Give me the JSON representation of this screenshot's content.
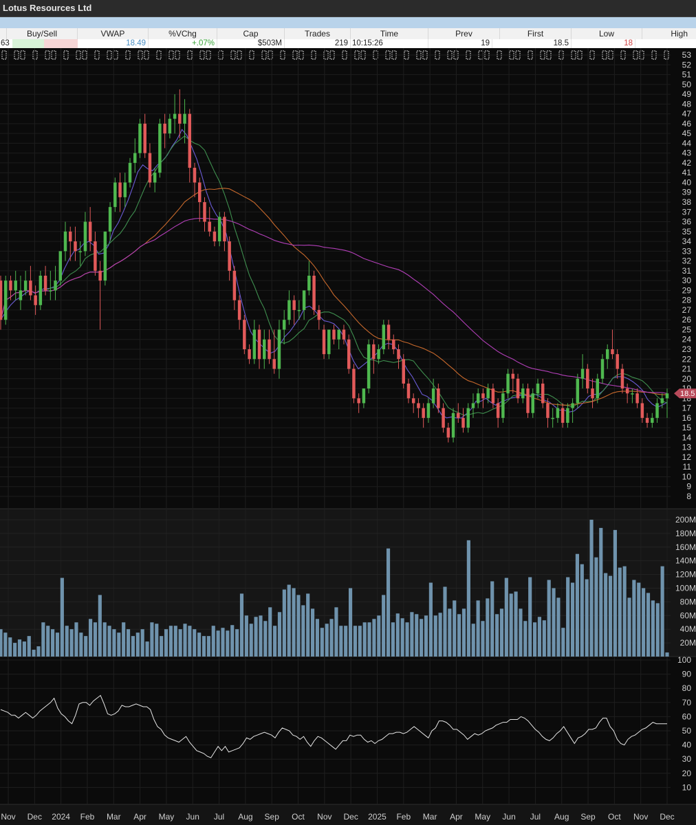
{
  "window": {
    "title": "Lotus Resources Ltd"
  },
  "quote": {
    "headers": [
      "Buy/Sell",
      "VWAP",
      "%VChg",
      "Cap",
      "Trades",
      "Time",
      "Prev",
      "First",
      "Low",
      "High"
    ],
    "values": {
      "left_fragment": "63",
      "vwap": "18.49",
      "vchg": "+.07%",
      "cap": "$503M",
      "trades": "219",
      "time": "10:15:26",
      "prev": "19",
      "first": "18.5",
      "low": "18"
    },
    "colors": {
      "buy_fill": "#d8f3d8",
      "sell_fill": "#f6d6d6",
      "up_text": "#3aa53a",
      "down_text": "#d04545",
      "vwap_text": "#4a8fc4"
    }
  },
  "chart_data": {
    "type": "candlestick",
    "panels": [
      "price",
      "volume",
      "rsi"
    ],
    "x_month_labels": [
      "Nov",
      "Dec",
      "2024",
      "Feb",
      "Mar",
      "Apr",
      "May",
      "Jun",
      "Jul",
      "Aug",
      "Sep",
      "Oct",
      "Nov",
      "Dec",
      "2025",
      "Feb",
      "Mar",
      "Apr",
      "May",
      "Jun",
      "Jul",
      "Aug",
      "Sep",
      "Oct",
      "Nov",
      "Dec"
    ],
    "price": {
      "ylim": [
        8,
        53
      ],
      "ticks": [
        53,
        52,
        51,
        50,
        49,
        48,
        47,
        46,
        45,
        44,
        43,
        42,
        41,
        40,
        39,
        38,
        37,
        36,
        35,
        34,
        33,
        32,
        31,
        30,
        29,
        28,
        27,
        26,
        25,
        24,
        23,
        22,
        21,
        20,
        19,
        18,
        17,
        16,
        15,
        14,
        13,
        12,
        11,
        10,
        9,
        8
      ],
      "last_price_label": "18.5",
      "ohlc": [
        [
          30,
          30.5,
          25,
          26
        ],
        [
          26,
          30.5,
          25.5,
          30
        ],
        [
          30,
          30.5,
          28,
          29
        ],
        [
          29,
          31,
          28,
          30
        ],
        [
          28,
          30.5,
          27,
          29
        ],
        [
          29,
          31,
          28.5,
          30
        ],
        [
          30,
          31.5,
          28,
          28.5
        ],
        [
          28.5,
          29.5,
          26.5,
          27.5
        ],
        [
          27.5,
          31,
          27,
          30.5
        ],
        [
          30.5,
          31.5,
          28.5,
          29
        ],
        [
          29,
          31,
          28,
          29
        ],
        [
          29,
          31.5,
          28,
          30
        ],
        [
          30,
          33,
          29.5,
          33
        ],
        [
          33,
          36,
          32,
          35
        ],
        [
          35,
          35.5,
          32,
          34
        ],
        [
          34,
          35.5,
          32,
          33
        ],
        [
          33,
          34,
          31.5,
          33
        ],
        [
          33,
          37,
          32.5,
          36
        ],
        [
          36,
          37.5,
          33,
          34
        ],
        [
          34,
          35,
          30.5,
          31
        ],
        [
          31,
          32,
          25,
          30
        ],
        [
          30,
          35,
          29.5,
          35
        ],
        [
          35,
          38,
          34,
          37.5
        ],
        [
          37.5,
          40.5,
          37,
          40
        ],
        [
          40,
          41,
          37,
          38.5
        ],
        [
          38.5,
          41,
          37.5,
          40
        ],
        [
          40,
          42.5,
          39.5,
          42
        ],
        [
          42,
          44.5,
          41,
          43
        ],
        [
          43,
          46.5,
          42.5,
          46
        ],
        [
          46,
          47,
          42.5,
          43
        ],
        [
          43,
          44,
          39.5,
          40
        ],
        [
          40,
          41.5,
          39,
          41
        ],
        [
          41,
          46.5,
          40.5,
          46
        ],
        [
          46,
          47,
          43.5,
          45
        ],
        [
          45,
          47,
          44.5,
          46.5
        ],
        [
          46.5,
          49,
          45,
          47
        ],
        [
          47,
          49.5,
          44.5,
          46
        ],
        [
          46,
          48.5,
          44,
          47
        ],
        [
          47,
          47.5,
          40,
          41.5
        ],
        [
          41.5,
          42,
          38.5,
          40
        ],
        [
          40,
          40.5,
          36,
          38
        ],
        [
          38,
          38.5,
          35,
          36
        ],
        [
          36,
          37.5,
          34.5,
          35
        ],
        [
          35,
          35.5,
          33.5,
          34
        ],
        [
          34,
          37,
          33.5,
          36.5
        ],
        [
          36.5,
          37,
          33,
          34
        ],
        [
          34,
          34.5,
          30,
          31
        ],
        [
          31,
          31.5,
          27,
          28
        ],
        [
          28,
          28.5,
          25,
          26
        ],
        [
          26,
          26.5,
          22.5,
          23
        ],
        [
          23,
          23.5,
          21.5,
          22
        ],
        [
          22,
          26,
          21.5,
          25
        ],
        [
          25,
          25.5,
          21,
          22
        ],
        [
          22,
          25,
          21,
          24
        ],
        [
          24,
          25,
          21.5,
          22
        ],
        [
          22,
          25,
          20.5,
          21
        ],
        [
          21,
          26,
          20,
          25
        ],
        [
          25,
          27,
          23.5,
          26
        ],
        [
          26,
          29,
          25.5,
          28
        ],
        [
          28,
          28.5,
          25.5,
          27
        ],
        [
          27,
          28,
          26,
          27
        ],
        [
          27,
          29,
          26,
          29
        ],
        [
          29,
          32,
          28.5,
          30.5
        ],
        [
          30.5,
          31,
          26.5,
          27
        ],
        [
          27,
          27.5,
          25,
          26
        ],
        [
          25,
          25.5,
          22,
          22.5
        ],
        [
          22.5,
          25,
          22,
          25
        ],
        [
          25,
          25.5,
          23.5,
          24
        ],
        [
          24,
          25,
          23,
          25
        ],
        [
          25,
          25.5,
          23.5,
          24
        ],
        [
          24,
          24.5,
          20.5,
          21
        ],
        [
          21,
          21.5,
          17.5,
          18
        ],
        [
          18,
          18.5,
          16.5,
          17.5
        ],
        [
          17.5,
          19,
          17,
          19
        ],
        [
          19,
          24,
          18.5,
          23.5
        ],
        [
          23.5,
          24,
          20.5,
          22
        ],
        [
          22,
          23.5,
          21.5,
          23
        ],
        [
          23,
          26,
          22.5,
          25.5
        ],
        [
          25.5,
          26,
          23,
          24
        ],
        [
          24,
          24.5,
          22.5,
          23
        ],
        [
          23,
          23.5,
          21,
          22
        ],
        [
          22,
          22.5,
          19,
          19.5
        ],
        [
          19.5,
          20,
          17.5,
          18
        ],
        [
          18,
          18.5,
          16.5,
          17.5
        ],
        [
          17.5,
          18,
          16,
          17
        ],
        [
          17,
          17.5,
          15,
          16
        ],
        [
          16,
          18,
          15.5,
          17.5
        ],
        [
          17.5,
          20,
          17,
          19
        ],
        [
          19,
          19.5,
          16.5,
          17
        ],
        [
          17,
          17.5,
          14.5,
          15
        ],
        [
          15,
          15.5,
          13.5,
          14
        ],
        [
          14,
          17,
          13.5,
          16.5
        ],
        [
          16.5,
          17.5,
          15.5,
          16
        ],
        [
          16,
          17,
          14.5,
          15
        ],
        [
          15,
          17.5,
          14.5,
          17
        ],
        [
          17,
          18.5,
          16,
          17.5
        ],
        [
          17.5,
          19,
          17,
          18.5
        ],
        [
          18.5,
          19,
          17,
          18
        ],
        [
          18,
          19.5,
          17.5,
          19
        ],
        [
          19,
          19.5,
          17,
          17.5
        ],
        [
          17.5,
          18,
          15,
          16
        ],
        [
          16,
          19,
          15.5,
          18.5
        ],
        [
          18.5,
          21,
          18,
          20.5
        ],
        [
          20.5,
          21,
          18.5,
          20
        ],
        [
          20,
          20.5,
          17.5,
          18
        ],
        [
          18,
          19.5,
          17.5,
          19
        ],
        [
          19,
          19.5,
          16,
          16.5
        ],
        [
          16.5,
          19,
          16,
          18.5
        ],
        [
          18.5,
          20,
          18,
          19.5
        ],
        [
          19.5,
          20,
          17,
          17.5
        ],
        [
          17.5,
          18,
          15,
          16
        ],
        [
          16,
          17,
          15,
          16
        ],
        [
          16,
          17.5,
          15.5,
          17
        ],
        [
          17,
          17.5,
          15,
          15.5
        ],
        [
          15.5,
          17.5,
          15,
          17
        ],
        [
          17,
          18,
          15.5,
          17.5
        ],
        [
          17.5,
          20.5,
          17,
          20
        ],
        [
          20,
          22.5,
          19,
          21
        ],
        [
          21,
          21.5,
          18.5,
          19
        ],
        [
          19,
          20,
          17,
          18
        ],
        [
          18,
          20.5,
          17.5,
          20
        ],
        [
          20,
          22.5,
          19.5,
          22
        ],
        [
          22,
          23.5,
          21,
          23
        ],
        [
          23,
          25,
          22,
          22.5
        ],
        [
          22.5,
          23,
          20,
          21
        ],
        [
          21,
          21.5,
          18.5,
          19
        ],
        [
          19,
          19.5,
          17.5,
          18.5
        ],
        [
          18.5,
          19,
          17.5,
          18.5
        ],
        [
          18.5,
          19,
          17,
          17.5
        ],
        [
          17.5,
          18,
          15.5,
          16
        ],
        [
          16,
          16.5,
          15,
          15.5
        ],
        [
          15.5,
          16.5,
          15,
          16
        ],
        [
          16,
          18,
          15.5,
          17.5
        ],
        [
          17.5,
          18.5,
          17,
          18
        ],
        [
          18,
          19,
          16,
          18.5
        ]
      ],
      "ma_fast": [
        26,
        26.8,
        27.5,
        28,
        28.3,
        28.7,
        29,
        28.7,
        29,
        29.2,
        29.2,
        29.4,
        30,
        31.2,
        32.2,
        33,
        33.2,
        33.8,
        34,
        33.6,
        32.7,
        32.8,
        33.6,
        35.1,
        35.9,
        37,
        38.2,
        39.6,
        41.1,
        41.8,
        41.4,
        41.2,
        41.8,
        42.2,
        42.8,
        43.7,
        44.4,
        45.4,
        44.8,
        43.6,
        42.4,
        40.8,
        39,
        37.6,
        36.7,
        36,
        34.8,
        32.6,
        30.4,
        28.2,
        26.3,
        24.8,
        24,
        23.5,
        23,
        22.6,
        22.8,
        23.5,
        24.3,
        24.8,
        25.5,
        26.2,
        27.2,
        27.4,
        27,
        26.4,
        25.9,
        25.8,
        25.6,
        25.1,
        24.3,
        23,
        21.8,
        21,
        21.4,
        21.8,
        22.2,
        22.7,
        23.4,
        23.6,
        23.5,
        22.9,
        21.8,
        20.9,
        20.2,
        19.3,
        18.4,
        18.2,
        17.8,
        17.1,
        16.3,
        16,
        16.1,
        16,
        16,
        16.4,
        16.9,
        17.7,
        17.7,
        18,
        17.6,
        17.3,
        17.6,
        17.8,
        18,
        18.1,
        18.3,
        18.3,
        18.2,
        18.4,
        18.2,
        17.8,
        17.6,
        17.2,
        16.8,
        16.8,
        16.6,
        16.7,
        17.1,
        17.6,
        18.2,
        18.4,
        18.4,
        18.8,
        19.4,
        20.1,
        20.2,
        20.2,
        20,
        19.7,
        19.3,
        18.8,
        17.9,
        17.4,
        17.1,
        17.3,
        17.6
      ]
    },
    "volume": {
      "unit": "M",
      "ylim": [
        0,
        210
      ],
      "ticks": [
        "200M",
        "180M",
        "160M",
        "140M",
        "120M",
        "100M",
        "80M",
        "60M",
        "40M",
        "20M"
      ],
      "values": [
        40,
        35,
        28,
        20,
        25,
        22,
        30,
        10,
        15,
        50,
        45,
        40,
        35,
        115,
        45,
        40,
        50,
        35,
        30,
        55,
        50,
        90,
        50,
        45,
        40,
        35,
        50,
        40,
        30,
        35,
        40,
        22,
        50,
        48,
        30,
        40,
        45,
        45,
        40,
        48,
        45,
        40,
        35,
        30,
        30,
        45,
        38,
        42,
        38,
        46,
        40,
        92,
        60,
        48,
        58,
        60,
        52,
        72,
        45,
        65,
        98,
        105,
        100,
        90,
        75,
        92,
        70,
        55,
        42,
        48,
        55,
        72,
        45,
        45,
        100,
        45,
        45,
        50,
        50,
        55,
        60,
        90,
        158,
        50,
        63,
        56,
        50,
        65,
        62,
        55,
        60,
        108,
        60,
        64,
        102,
        70,
        82,
        62,
        70,
        170,
        48,
        82,
        52,
        85,
        110,
        62,
        70,
        115,
        92,
        95,
        70,
        52,
        116,
        50,
        58,
        53,
        112,
        100,
        86,
        42,
        116,
        108,
        150,
        135,
        113,
        200,
        145,
        188,
        122,
        118,
        185,
        130,
        132,
        86,
        112,
        108,
        100,
        93,
        82,
        78,
        132,
        6
      ]
    },
    "rsi": {
      "ylim": [
        0,
        100
      ],
      "ticks": [
        100,
        90,
        80,
        70,
        60,
        50,
        40,
        30,
        20,
        10
      ],
      "values": [
        65,
        64,
        63,
        61,
        61,
        59,
        61,
        63,
        61,
        59,
        61,
        64,
        66,
        68,
        70,
        73,
        66,
        62,
        60,
        57,
        55,
        61,
        69,
        70,
        70,
        68,
        71,
        73,
        75,
        69,
        62,
        61,
        62,
        64,
        68,
        67,
        67,
        68,
        69,
        68,
        67,
        67,
        65,
        58,
        53,
        51,
        47,
        45,
        44,
        43,
        42,
        44,
        46,
        42,
        39,
        36,
        35,
        34,
        32,
        31,
        35,
        39,
        36,
        39,
        35,
        36,
        37,
        38,
        41,
        45,
        44,
        46,
        47,
        48,
        49,
        48,
        47,
        45,
        49,
        52,
        51,
        50,
        47,
        46,
        44,
        46,
        42,
        39,
        43,
        46,
        45,
        43,
        41,
        39,
        37,
        40,
        43,
        43,
        47,
        46,
        47,
        47,
        44,
        42,
        43,
        41,
        43,
        44,
        46,
        48,
        48,
        49,
        49,
        48,
        49,
        51,
        53,
        51,
        49,
        47,
        45,
        50,
        52,
        57,
        57,
        56,
        54,
        51,
        51,
        49,
        47,
        44,
        46,
        48,
        47,
        48,
        50,
        51,
        52,
        54,
        55,
        56,
        56,
        58,
        58,
        58,
        60,
        59,
        57,
        54,
        51,
        49,
        46,
        44,
        43,
        45,
        48,
        50,
        53,
        49,
        45,
        41,
        45,
        46,
        48,
        51,
        51,
        52,
        56,
        59,
        59,
        53,
        50,
        44,
        41,
        40,
        44,
        46,
        47,
        49,
        51,
        52,
        54,
        56,
        55,
        55,
        55,
        55
      ]
    }
  }
}
